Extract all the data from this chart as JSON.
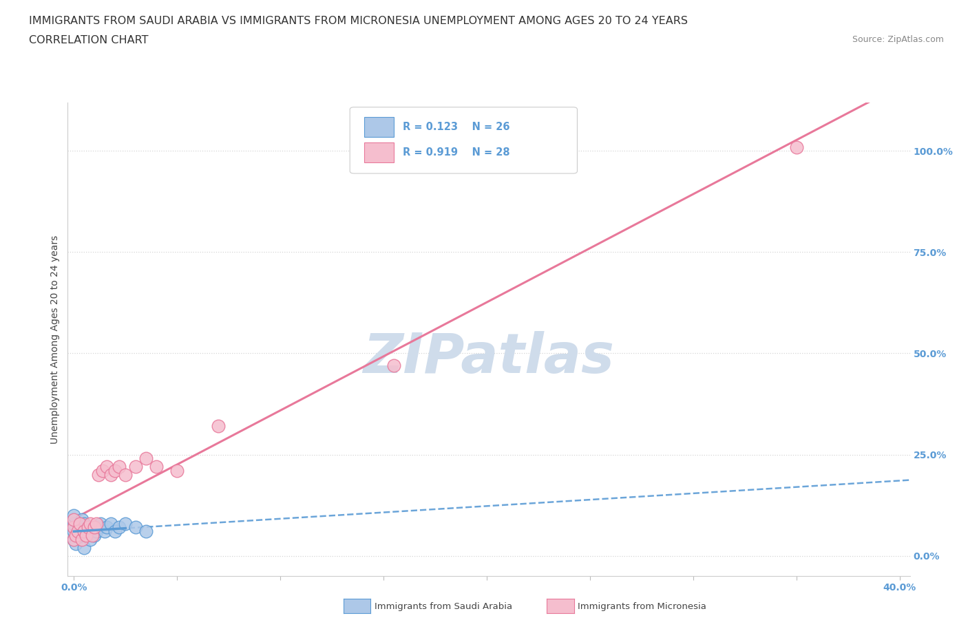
{
  "title_line1": "IMMIGRANTS FROM SAUDI ARABIA VS IMMIGRANTS FROM MICRONESIA UNEMPLOYMENT AMONG AGES 20 TO 24 YEARS",
  "title_line2": "CORRELATION CHART",
  "source_text": "Source: ZipAtlas.com",
  "ylabel": "Unemployment Among Ages 20 to 24 years",
  "xlim": [
    -0.003,
    0.405
  ],
  "ylim": [
    -0.05,
    1.12
  ],
  "xtick_positions": [
    0.0,
    0.05,
    0.1,
    0.15,
    0.2,
    0.25,
    0.3,
    0.35,
    0.4
  ],
  "xticklabels": [
    "0.0%",
    "",
    "",
    "",
    "",
    "",
    "",
    "",
    "40.0%"
  ],
  "yticks_right": [
    0.0,
    0.25,
    0.5,
    0.75,
    1.0
  ],
  "ytick_right_labels": [
    "0.0%",
    "25.0%",
    "50.0%",
    "75.0%",
    "100.0%"
  ],
  "saudi_color": "#adc8e8",
  "saudi_edge_color": "#5b9bd5",
  "micronesia_color": "#f5bece",
  "micronesia_edge_color": "#e8789a",
  "trend_saudi_color": "#5b9bd5",
  "trend_micronesia_color": "#e8789a",
  "watermark_color": "#cfdceb",
  "legend_R_saudi": "R = 0.123",
  "legend_N_saudi": "N = 26",
  "legend_R_micro": "R = 0.919",
  "legend_N_micro": "N = 28",
  "legend_label_saudi": "Immigrants from Saudi Arabia",
  "legend_label_micro": "Immigrants from Micronesia",
  "title_fontsize": 11.5,
  "axis_label_fontsize": 10,
  "tick_fontsize": 10,
  "saudi_x": [
    0.0,
    0.0,
    0.0,
    0.0,
    0.001,
    0.002,
    0.003,
    0.004,
    0.005,
    0.005,
    0.006,
    0.007,
    0.008,
    0.009,
    0.01,
    0.011,
    0.012,
    0.013,
    0.015,
    0.016,
    0.018,
    0.02,
    0.022,
    0.025,
    0.03,
    0.035
  ],
  "saudi_y": [
    0.04,
    0.06,
    0.08,
    0.1,
    0.03,
    0.05,
    0.07,
    0.09,
    0.02,
    0.08,
    0.05,
    0.06,
    0.04,
    0.07,
    0.05,
    0.06,
    0.07,
    0.08,
    0.06,
    0.07,
    0.08,
    0.06,
    0.07,
    0.08,
    0.07,
    0.06
  ],
  "micro_x": [
    0.0,
    0.0,
    0.0,
    0.001,
    0.002,
    0.003,
    0.004,
    0.005,
    0.006,
    0.007,
    0.008,
    0.009,
    0.01,
    0.011,
    0.012,
    0.014,
    0.016,
    0.018,
    0.02,
    0.022,
    0.025,
    0.03,
    0.035,
    0.04,
    0.05,
    0.07,
    0.155,
    0.35
  ],
  "micro_y": [
    0.04,
    0.07,
    0.09,
    0.05,
    0.06,
    0.08,
    0.04,
    0.06,
    0.05,
    0.07,
    0.08,
    0.05,
    0.07,
    0.08,
    0.2,
    0.21,
    0.22,
    0.2,
    0.21,
    0.22,
    0.2,
    0.22,
    0.24,
    0.22,
    0.21,
    0.32,
    0.47,
    1.01
  ],
  "background_color": "#ffffff",
  "grid_color": "#d5d5d5",
  "title_color": "#333333",
  "tick_color": "#5b9bd5"
}
